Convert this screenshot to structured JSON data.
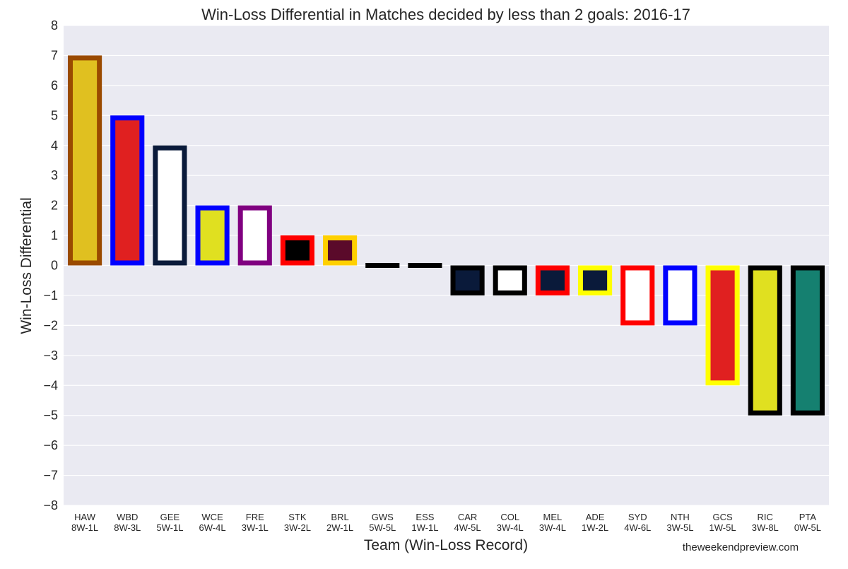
{
  "chart_data": {
    "type": "bar",
    "title": "Win-Loss Differential in Matches decided by less than 2 goals: 2016-17",
    "xlabel": "Team (Win-Loss Record)",
    "ylabel": "Win-Loss Differential",
    "ylim": [
      -8,
      8
    ],
    "yticks": [
      "8",
      "7",
      "6",
      "5",
      "4",
      "3",
      "2",
      "1",
      "0",
      "−1",
      "−2",
      "−3",
      "−4",
      "−5",
      "−6",
      "−7",
      "−8"
    ],
    "grid": true,
    "background": "#eaeaf2",
    "categories": [
      {
        "team": "HAW",
        "record": "8W-1L",
        "value": 7,
        "fill": "#e0c020",
        "edge": "#9a4a00"
      },
      {
        "team": "WBD",
        "record": "8W-3L",
        "value": 5,
        "fill": "#e02020",
        "edge": "#0000ff"
      },
      {
        "team": "GEE",
        "record": "5W-1L",
        "value": 4,
        "fill": "#ffffff",
        "edge": "#0a1a3a"
      },
      {
        "team": "WCE",
        "record": "6W-4L",
        "value": 2,
        "fill": "#e0e020",
        "edge": "#0000ff"
      },
      {
        "team": "FRE",
        "record": "3W-1L",
        "value": 2,
        "fill": "#ffffff",
        "edge": "#800080"
      },
      {
        "team": "STK",
        "record": "3W-2L",
        "value": 1,
        "fill": "#000000",
        "edge": "#ff0000"
      },
      {
        "team": "BRL",
        "record": "2W-1L",
        "value": 1,
        "fill": "#5a0a2a",
        "edge": "#ffd000"
      },
      {
        "team": "GWS",
        "record": "5W-5L",
        "value": 0,
        "fill": "#000000",
        "edge": "#000000"
      },
      {
        "team": "ESS",
        "record": "1W-1L",
        "value": 0,
        "fill": "#000000",
        "edge": "#000000"
      },
      {
        "team": "CAR",
        "record": "4W-5L",
        "value": -1,
        "fill": "#0a1a3a",
        "edge": "#000000"
      },
      {
        "team": "COL",
        "record": "3W-4L",
        "value": -1,
        "fill": "#ffffff",
        "edge": "#000000"
      },
      {
        "team": "MEL",
        "record": "3W-4L",
        "value": -1,
        "fill": "#0a1a3a",
        "edge": "#ff0000"
      },
      {
        "team": "ADE",
        "record": "1W-2L",
        "value": -1,
        "fill": "#0a1a3a",
        "edge": "#ffff00"
      },
      {
        "team": "SYD",
        "record": "4W-6L",
        "value": -2,
        "fill": "#ffffff",
        "edge": "#ff0000"
      },
      {
        "team": "NTH",
        "record": "3W-5L",
        "value": -2,
        "fill": "#ffffff",
        "edge": "#0000ff"
      },
      {
        "team": "GCS",
        "record": "1W-5L",
        "value": -4,
        "fill": "#e02020",
        "edge": "#ffff00"
      },
      {
        "team": "RIC",
        "record": "3W-8L",
        "value": -5,
        "fill": "#e0e020",
        "edge": "#000000"
      },
      {
        "team": "PTA",
        "record": "0W-5L",
        "value": -5,
        "fill": "#158070",
        "edge": "#000000"
      }
    ]
  },
  "credit": "theweekendpreview.com"
}
